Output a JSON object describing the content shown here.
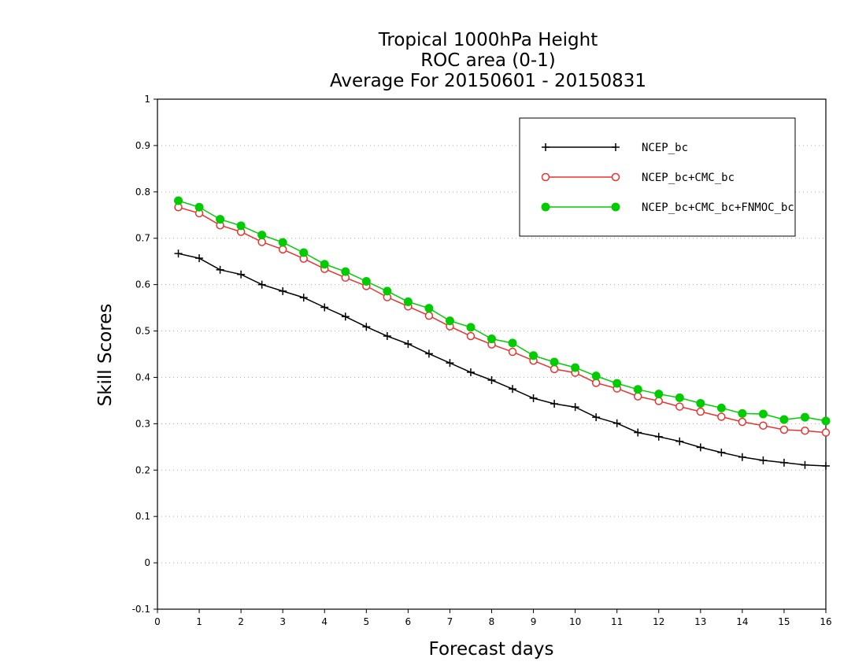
{
  "chart_data": {
    "type": "line",
    "title": [
      "Tropical 1000hPa Height",
      "ROC area (0-1)",
      "Average For 20150601 - 20150831"
    ],
    "xlabel": "Forecast days",
    "ylabel": "Skill Scores",
    "xlim": [
      0,
      16
    ],
    "ylim": [
      -0.1,
      1
    ],
    "xticks": [
      "0",
      "1",
      "2",
      "3",
      "4",
      "5",
      "6",
      "7",
      "8",
      "9",
      "10",
      "11",
      "12",
      "13",
      "14",
      "15",
      "16"
    ],
    "yticks": [
      "-0.1",
      "0",
      "0.1",
      "0.2",
      "0.3",
      "0.4",
      "0.5",
      "0.6",
      "0.7",
      "0.8",
      "0.9",
      "1"
    ],
    "grid": "horizontal dotted",
    "legend_position": "top-right",
    "x": [
      0.5,
      1,
      1.5,
      2,
      2.5,
      3,
      3.5,
      4,
      4.5,
      5,
      5.5,
      6,
      6.5,
      7,
      7.5,
      8,
      8.5,
      9,
      9.5,
      10,
      10.5,
      11,
      11.5,
      12,
      12.5,
      13,
      13.5,
      14,
      14.5,
      15,
      15.5,
      16
    ],
    "series": [
      {
        "name": "NCEP_bc",
        "color": "#000000",
        "marker": "plus",
        "values": [
          0.667,
          0.657,
          0.632,
          0.622,
          0.6,
          0.586,
          0.572,
          0.551,
          0.531,
          0.509,
          0.489,
          0.472,
          0.451,
          0.431,
          0.411,
          0.394,
          0.375,
          0.355,
          0.343,
          0.336,
          0.314,
          0.301,
          0.281,
          0.272,
          0.262,
          0.249,
          0.238,
          0.228,
          0.221,
          0.216,
          0.211,
          0.209
        ]
      },
      {
        "name": "NCEP_bc+CMC_bc",
        "color": "#e8332f",
        "marker": "open-circle",
        "values": [
          0.767,
          0.754,
          0.728,
          0.714,
          0.692,
          0.676,
          0.656,
          0.634,
          0.615,
          0.597,
          0.573,
          0.553,
          0.533,
          0.51,
          0.489,
          0.471,
          0.455,
          0.436,
          0.418,
          0.41,
          0.388,
          0.376,
          0.359,
          0.349,
          0.337,
          0.326,
          0.315,
          0.304,
          0.296,
          0.287,
          0.285,
          0.281
        ]
      },
      {
        "name": "NCEP_bc+CMC_bc+FNMOC_bc",
        "color": "#00cc00",
        "marker": "filled-circle",
        "values": [
          0.781,
          0.767,
          0.741,
          0.727,
          0.707,
          0.691,
          0.669,
          0.644,
          0.628,
          0.607,
          0.586,
          0.563,
          0.549,
          0.522,
          0.508,
          0.483,
          0.474,
          0.447,
          0.433,
          0.421,
          0.403,
          0.387,
          0.374,
          0.364,
          0.356,
          0.344,
          0.334,
          0.322,
          0.321,
          0.309,
          0.314,
          0.306
        ]
      }
    ]
  }
}
